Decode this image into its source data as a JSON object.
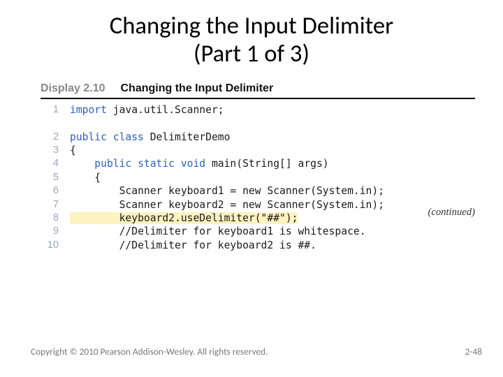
{
  "title": {
    "line1": "Changing the Input Delimiter",
    "line2": "(Part 1 of 3)",
    "fontsize_pt": 26,
    "color": "#000000"
  },
  "display": {
    "label": "Display 2.10",
    "title": "Changing the Input Delimiter",
    "label_color": "#888888",
    "title_color": "#111111",
    "fontsize_pt": 12,
    "rule_color": "#000000"
  },
  "code": {
    "fontsize_pt": 11,
    "gutter_color": "#9aa7c2",
    "keyword_color": "#2a5fc7",
    "text_color": "#1a1a1a",
    "highlight_bg": "#fdf2c1",
    "lines": [
      {
        "n": 1,
        "indent": 0,
        "kw": "import",
        "rest": " java.util.Scanner;",
        "hl": false
      },
      {
        "n": 2,
        "indent": 0,
        "kw": "public class",
        "rest": " DelimiterDemo",
        "hl": false
      },
      {
        "n": 3,
        "indent": 0,
        "kw": "",
        "rest": "{",
        "hl": false
      },
      {
        "n": 4,
        "indent": 1,
        "kw": "public static void",
        "rest": " main(String[] args)",
        "hl": false
      },
      {
        "n": 5,
        "indent": 1,
        "kw": "",
        "rest": "{",
        "hl": false
      },
      {
        "n": 6,
        "indent": 2,
        "kw": "",
        "rest": "Scanner keyboard1 = new Scanner(System.in);",
        "hl": false
      },
      {
        "n": 7,
        "indent": 2,
        "kw": "",
        "rest": "Scanner keyboard2 = new Scanner(System.in);",
        "hl": false
      },
      {
        "n": 8,
        "indent": 2,
        "kw": "",
        "rest": "keyboard2.useDelimiter(\"##\");",
        "hl": true
      },
      {
        "n": 9,
        "indent": 2,
        "kw": "",
        "rest": "//Delimiter for keyboard1 is whitespace.",
        "hl": false
      },
      {
        "n": 10,
        "indent": 2,
        "kw": "",
        "rest": "//Delimiter for keyboard2 is ##.",
        "hl": false
      }
    ]
  },
  "continued": {
    "text": "(continued)",
    "fontsize_pt": 11,
    "color": "#333333"
  },
  "footer": {
    "copyright": "Copyright © 2010 Pearson Addison-Wesley. All rights reserved.",
    "page": "2-48",
    "fontsize_pt": 10,
    "color": "#777777"
  }
}
